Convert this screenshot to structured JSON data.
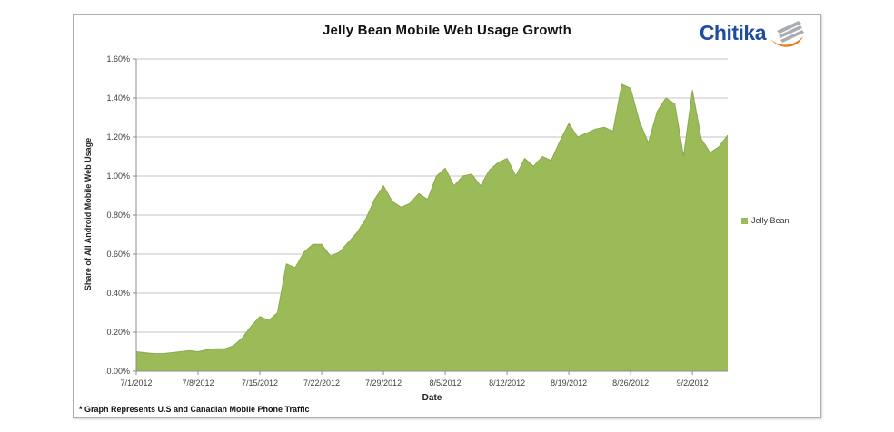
{
  "chart": {
    "title": "Jelly Bean Mobile Web Usage Growth",
    "x_axis_title": "Date",
    "y_axis_title": "Share of All Android Mobile  Web Usage",
    "legend_label": "Jelly Bean",
    "footnote": "* Graph Represents U.S and Canadian Mobile Phone Traffic"
  },
  "logo": {
    "text": "Chitika",
    "text_color": "#1d4da1",
    "swoosh_orange": "#e87d1e",
    "swoosh_gray": "#a9adb2"
  },
  "chart_data": {
    "type": "area",
    "title": "Jelly Bean Mobile Web Usage Growth",
    "xlabel": "Date",
    "ylabel": "Share of All Android Mobile  Web Usage",
    "legend": [
      "Jelly Bean"
    ],
    "legend_position": "right",
    "grid": true,
    "ylim": [
      0,
      1.6
    ],
    "y_unit": "percent",
    "y_tick_labels": [
      "0.00%",
      "0.20%",
      "0.40%",
      "0.60%",
      "0.80%",
      "1.00%",
      "1.20%",
      "1.40%",
      "1.60%"
    ],
    "x_ticks": [
      {
        "label": "7/1/2012",
        "index": 0
      },
      {
        "label": "7/8/2012",
        "index": 7
      },
      {
        "label": "7/15/2012",
        "index": 14
      },
      {
        "label": "7/22/2012",
        "index": 21
      },
      {
        "label": "7/29/2012",
        "index": 28
      },
      {
        "label": "8/5/2012",
        "index": 35
      },
      {
        "label": "8/12/2012",
        "index": 42
      },
      {
        "label": "8/19/2012",
        "index": 49
      },
      {
        "label": "8/26/2012",
        "index": 56
      },
      {
        "label": "9/2/2012",
        "index": 63
      }
    ],
    "categories": [
      "7/1/2012",
      "7/2/2012",
      "7/3/2012",
      "7/4/2012",
      "7/5/2012",
      "7/6/2012",
      "7/7/2012",
      "7/8/2012",
      "7/9/2012",
      "7/10/2012",
      "7/11/2012",
      "7/12/2012",
      "7/13/2012",
      "7/14/2012",
      "7/15/2012",
      "7/16/2012",
      "7/17/2012",
      "7/18/2012",
      "7/19/2012",
      "7/20/2012",
      "7/21/2012",
      "7/22/2012",
      "7/23/2012",
      "7/24/2012",
      "7/25/2012",
      "7/26/2012",
      "7/27/2012",
      "7/28/2012",
      "7/29/2012",
      "7/30/2012",
      "7/31/2012",
      "8/1/2012",
      "8/2/2012",
      "8/3/2012",
      "8/4/2012",
      "8/5/2012",
      "8/6/2012",
      "8/7/2012",
      "8/8/2012",
      "8/9/2012",
      "8/10/2012",
      "8/11/2012",
      "8/12/2012",
      "8/13/2012",
      "8/14/2012",
      "8/15/2012",
      "8/16/2012",
      "8/17/2012",
      "8/18/2012",
      "8/19/2012",
      "8/20/2012",
      "8/21/2012",
      "8/22/2012",
      "8/23/2012",
      "8/24/2012",
      "8/25/2012",
      "8/26/2012",
      "8/27/2012",
      "8/28/2012",
      "8/29/2012",
      "8/30/2012",
      "8/31/2012",
      "9/1/2012",
      "9/2/2012",
      "9/3/2012",
      "9/4/2012",
      "9/5/2012",
      "9/6/2012"
    ],
    "values": [
      0.1,
      0.095,
      0.09,
      0.09,
      0.095,
      0.1,
      0.105,
      0.1,
      0.11,
      0.115,
      0.115,
      0.13,
      0.17,
      0.23,
      0.28,
      0.26,
      0.3,
      0.55,
      0.53,
      0.61,
      0.65,
      0.65,
      0.59,
      0.61,
      0.66,
      0.71,
      0.78,
      0.88,
      0.95,
      0.87,
      0.84,
      0.86,
      0.91,
      0.88,
      1.0,
      1.04,
      0.95,
      1.0,
      1.01,
      0.95,
      1.03,
      1.07,
      1.09,
      1.0,
      1.09,
      1.05,
      1.1,
      1.08,
      1.18,
      1.27,
      1.2,
      1.22,
      1.24,
      1.25,
      1.23,
      1.47,
      1.45,
      1.28,
      1.17,
      1.33,
      1.4,
      1.37,
      1.1,
      1.44,
      1.19,
      1.12,
      1.15,
      1.21
    ],
    "colors": {
      "area": "#9bbb59",
      "area_edge": "#8ca64c",
      "gridline": "#c6c6c6",
      "axis": "#8c8c8c",
      "tick_text": "#3f3f3f"
    }
  }
}
